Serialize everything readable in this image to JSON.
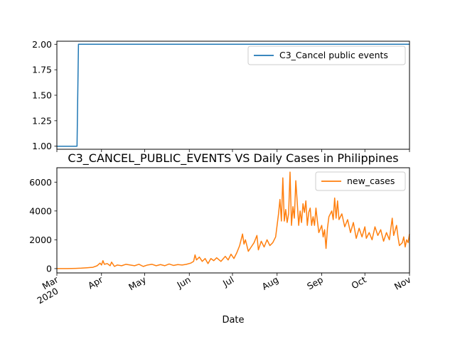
{
  "chart_data": [
    {
      "type": "line",
      "title": "",
      "xlabel": "",
      "ylabel": "",
      "ylim": [
        0.97,
        2.03
      ],
      "yticks": [
        "1.00",
        "1.25",
        "1.50",
        "1.75",
        "2.00"
      ],
      "legend": "top-right",
      "series": [
        {
          "name": "C3_Cancel public events",
          "color": "#1f77b4",
          "points": [
            [
              "2020-03-01",
              1
            ],
            [
              "2020-03-15",
              1
            ],
            [
              "2020-03-16",
              2
            ],
            [
              "2020-11-01",
              2
            ]
          ]
        }
      ]
    },
    {
      "type": "line",
      "title": "C3_CANCEL_PUBLIC_EVENTS VS Daily Cases in Philippines",
      "xlabel": "Date",
      "ylabel": "",
      "ylim": [
        -300,
        7000
      ],
      "yticks": [
        "0",
        "2000",
        "4000",
        "6000"
      ],
      "legend": "top-right",
      "x_ticks": [
        {
          "label": "Mar",
          "sub": "2020",
          "date": "2020-03-01"
        },
        {
          "label": "Apr",
          "sub": "",
          "date": "2020-04-01"
        },
        {
          "label": "May",
          "sub": "",
          "date": "2020-05-01"
        },
        {
          "label": "Jun",
          "sub": "",
          "date": "2020-06-01"
        },
        {
          "label": "Jul",
          "sub": "",
          "date": "2020-07-01"
        },
        {
          "label": "Aug",
          "sub": "",
          "date": "2020-08-01"
        },
        {
          "label": "Sep",
          "sub": "",
          "date": "2020-09-01"
        },
        {
          "label": "Oct",
          "sub": "",
          "date": "2020-10-01"
        },
        {
          "label": "Nov",
          "sub": "",
          "date": "2020-11-01"
        }
      ],
      "series": [
        {
          "name": "new_cases",
          "color": "#ff7f0e",
          "points": [
            [
              "2020-03-01",
              0
            ],
            [
              "2020-03-08",
              5
            ],
            [
              "2020-03-14",
              15
            ],
            [
              "2020-03-18",
              30
            ],
            [
              "2020-03-22",
              60
            ],
            [
              "2020-03-26",
              90
            ],
            [
              "2020-03-29",
              200
            ],
            [
              "2020-03-31",
              380
            ],
            [
              "2020-04-01",
              250
            ],
            [
              "2020-04-02",
              550
            ],
            [
              "2020-04-03",
              300
            ],
            [
              "2020-04-05",
              350
            ],
            [
              "2020-04-07",
              200
            ],
            [
              "2020-04-08",
              450
            ],
            [
              "2020-04-10",
              150
            ],
            [
              "2020-04-12",
              250
            ],
            [
              "2020-04-15",
              200
            ],
            [
              "2020-04-18",
              300
            ],
            [
              "2020-04-21",
              250
            ],
            [
              "2020-04-24",
              200
            ],
            [
              "2020-04-27",
              300
            ],
            [
              "2020-04-30",
              150
            ],
            [
              "2020-05-03",
              250
            ],
            [
              "2020-05-06",
              300
            ],
            [
              "2020-05-09",
              200
            ],
            [
              "2020-05-12",
              280
            ],
            [
              "2020-05-15",
              200
            ],
            [
              "2020-05-18",
              320
            ],
            [
              "2020-05-21",
              220
            ],
            [
              "2020-05-24",
              280
            ],
            [
              "2020-05-27",
              250
            ],
            [
              "2020-05-30",
              300
            ],
            [
              "2020-06-02",
              380
            ],
            [
              "2020-06-04",
              500
            ],
            [
              "2020-06-05",
              950
            ],
            [
              "2020-06-06",
              600
            ],
            [
              "2020-06-08",
              800
            ],
            [
              "2020-06-10",
              500
            ],
            [
              "2020-06-12",
              700
            ],
            [
              "2020-06-14",
              350
            ],
            [
              "2020-06-16",
              700
            ],
            [
              "2020-06-18",
              550
            ],
            [
              "2020-06-20",
              750
            ],
            [
              "2020-06-23",
              500
            ],
            [
              "2020-06-26",
              850
            ],
            [
              "2020-06-28",
              600
            ],
            [
              "2020-06-30",
              1000
            ],
            [
              "2020-07-02",
              700
            ],
            [
              "2020-07-04",
              1100
            ],
            [
              "2020-07-06",
              1600
            ],
            [
              "2020-07-08",
              2400
            ],
            [
              "2020-07-09",
              1700
            ],
            [
              "2020-07-10",
              2000
            ],
            [
              "2020-07-12",
              1200
            ],
            [
              "2020-07-14",
              1500
            ],
            [
              "2020-07-16",
              1800
            ],
            [
              "2020-07-18",
              2300
            ],
            [
              "2020-07-19",
              1300
            ],
            [
              "2020-07-21",
              1900
            ],
            [
              "2020-07-23",
              1500
            ],
            [
              "2020-07-25",
              2000
            ],
            [
              "2020-07-27",
              1600
            ],
            [
              "2020-07-29",
              1800
            ],
            [
              "2020-07-31",
              2200
            ],
            [
              "2020-08-01",
              3000
            ],
            [
              "2020-08-02",
              3800
            ],
            [
              "2020-08-03",
              4800
            ],
            [
              "2020-08-04",
              3300
            ],
            [
              "2020-08-05",
              6300
            ],
            [
              "2020-08-06",
              3300
            ],
            [
              "2020-08-07",
              4100
            ],
            [
              "2020-08-08",
              3200
            ],
            [
              "2020-08-09",
              3800
            ],
            [
              "2020-08-10",
              6700
            ],
            [
              "2020-08-11",
              3000
            ],
            [
              "2020-08-12",
              4300
            ],
            [
              "2020-08-13",
              3500
            ],
            [
              "2020-08-14",
              6100
            ],
            [
              "2020-08-15",
              4600
            ],
            [
              "2020-08-16",
              3000
            ],
            [
              "2020-08-17",
              4000
            ],
            [
              "2020-08-18",
              3200
            ],
            [
              "2020-08-19",
              4500
            ],
            [
              "2020-08-20",
              3900
            ],
            [
              "2020-08-21",
              4700
            ],
            [
              "2020-08-22",
              3000
            ],
            [
              "2020-08-23",
              3900
            ],
            [
              "2020-08-24",
              4200
            ],
            [
              "2020-08-25",
              3000
            ],
            [
              "2020-08-26",
              3600
            ],
            [
              "2020-08-27",
              3000
            ],
            [
              "2020-08-28",
              4200
            ],
            [
              "2020-08-29",
              3300
            ],
            [
              "2020-08-30",
              2500
            ],
            [
              "2020-09-01",
              3000
            ],
            [
              "2020-09-02",
              2200
            ],
            [
              "2020-09-03",
              2700
            ],
            [
              "2020-09-04",
              1400
            ],
            [
              "2020-09-05",
              2800
            ],
            [
              "2020-09-06",
              3600
            ],
            [
              "2020-09-08",
              4000
            ],
            [
              "2020-09-09",
              3400
            ],
            [
              "2020-09-10",
              4900
            ],
            [
              "2020-09-11",
              3500
            ],
            [
              "2020-09-12",
              4700
            ],
            [
              "2020-09-13",
              3400
            ],
            [
              "2020-09-15",
              3800
            ],
            [
              "2020-09-17",
              2900
            ],
            [
              "2020-09-19",
              3400
            ],
            [
              "2020-09-21",
              2500
            ],
            [
              "2020-09-23",
              3200
            ],
            [
              "2020-09-25",
              2100
            ],
            [
              "2020-09-27",
              2800
            ],
            [
              "2020-09-29",
              2200
            ],
            [
              "2020-10-01",
              2900
            ],
            [
              "2020-10-02",
              2100
            ],
            [
              "2020-10-04",
              2500
            ],
            [
              "2020-10-06",
              2000
            ],
            [
              "2020-10-08",
              2900
            ],
            [
              "2020-10-10",
              2300
            ],
            [
              "2020-10-12",
              2700
            ],
            [
              "2020-10-14",
              1900
            ],
            [
              "2020-10-16",
              2500
            ],
            [
              "2020-10-18",
              2000
            ],
            [
              "2020-10-20",
              3500
            ],
            [
              "2020-10-21",
              2300
            ],
            [
              "2020-10-23",
              3000
            ],
            [
              "2020-10-24",
              2200
            ],
            [
              "2020-10-25",
              1600
            ],
            [
              "2020-10-27",
              1800
            ],
            [
              "2020-10-28",
              2200
            ],
            [
              "2020-10-29",
              1500
            ],
            [
              "2020-10-30",
              2000
            ],
            [
              "2020-10-31",
              1800
            ],
            [
              "2020-11-01",
              2400
            ]
          ]
        }
      ]
    }
  ]
}
